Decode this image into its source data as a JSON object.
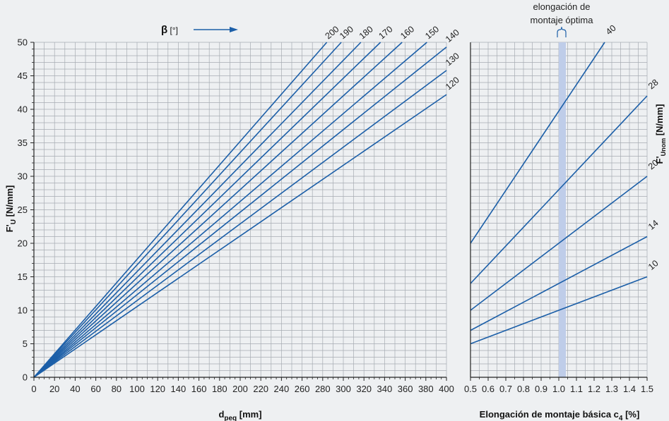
{
  "chart_data": [
    {
      "type": "line",
      "xlabel": "d",
      "xlabel_sub": "peq",
      "xlabel_unit": " [mm]",
      "ylabel": "F'",
      "ylabel_sub": "U",
      "ylabel_unit": " [N/mm]",
      "xlim": [
        0,
        400
      ],
      "ylim": [
        0,
        50
      ],
      "x_ticks": [
        0,
        20,
        40,
        60,
        80,
        100,
        120,
        140,
        160,
        180,
        200,
        220,
        240,
        260,
        280,
        300,
        320,
        340,
        360,
        380,
        400
      ],
      "y_ticks": [
        0,
        5,
        10,
        15,
        20,
        25,
        30,
        35,
        40,
        45,
        50
      ],
      "grid": true,
      "legend_title": "β",
      "legend_unit": " [°]",
      "series": [
        {
          "name": "200",
          "x": [
            0,
            284
          ],
          "y": [
            0,
            50
          ]
        },
        {
          "name": "190",
          "x": [
            0,
            298
          ],
          "y": [
            0,
            50
          ]
        },
        {
          "name": "180",
          "x": [
            0,
            317
          ],
          "y": [
            0,
            50
          ]
        },
        {
          "name": "170",
          "x": [
            0,
            336
          ],
          "y": [
            0,
            50
          ]
        },
        {
          "name": "160",
          "x": [
            0,
            357
          ],
          "y": [
            0,
            50
          ]
        },
        {
          "name": "150",
          "x": [
            0,
            381
          ],
          "y": [
            0,
            50
          ]
        },
        {
          "name": "140",
          "x": [
            0,
            400
          ],
          "y": [
            0,
            49.3
          ]
        },
        {
          "name": "130",
          "x": [
            0,
            400
          ],
          "y": [
            0,
            45.8
          ]
        },
        {
          "name": "120",
          "x": [
            0,
            400
          ],
          "y": [
            0,
            42.2
          ]
        }
      ]
    },
    {
      "type": "line",
      "xlabel": "Elongación de montaje básica c",
      "xlabel_sub": "4",
      "xlabel_unit": " [%]",
      "ylabel": "F'",
      "ylabel_sub": "Unom",
      "ylabel_unit": " [N/mm]",
      "xlim": [
        0.5,
        1.5
      ],
      "ylim": [
        0,
        50
      ],
      "x_ticks": [
        "0.5",
        "0.6",
        "0.7",
        "0.8",
        "0.9",
        "1.0",
        "1.1",
        "1.2",
        "1.3",
        "1.4",
        "1.5"
      ],
      "grid": true,
      "series": [
        {
          "name": "40",
          "x": [
            0.5,
            1.26
          ],
          "y": [
            20,
            50
          ]
        },
        {
          "name": "28",
          "x": [
            0.5,
            1.5
          ],
          "y": [
            14,
            42
          ]
        },
        {
          "name": "20",
          "x": [
            0.5,
            1.5
          ],
          "y": [
            10,
            30
          ]
        },
        {
          "name": "14",
          "x": [
            0.5,
            1.5
          ],
          "y": [
            7,
            21
          ]
        },
        {
          "name": "10",
          "x": [
            0.5,
            1.5
          ],
          "y": [
            5,
            15
          ]
        }
      ],
      "highlight_band": {
        "x": [
          1.0,
          1.04
        ],
        "label_line1": "elongación de",
        "label_line2": "montaje óptima"
      }
    }
  ],
  "colors": {
    "line": "#1c5fa8",
    "grid": "#a6abb2",
    "band": "#bfcde9",
    "background": "#eef0f2",
    "axis": "#222222"
  }
}
